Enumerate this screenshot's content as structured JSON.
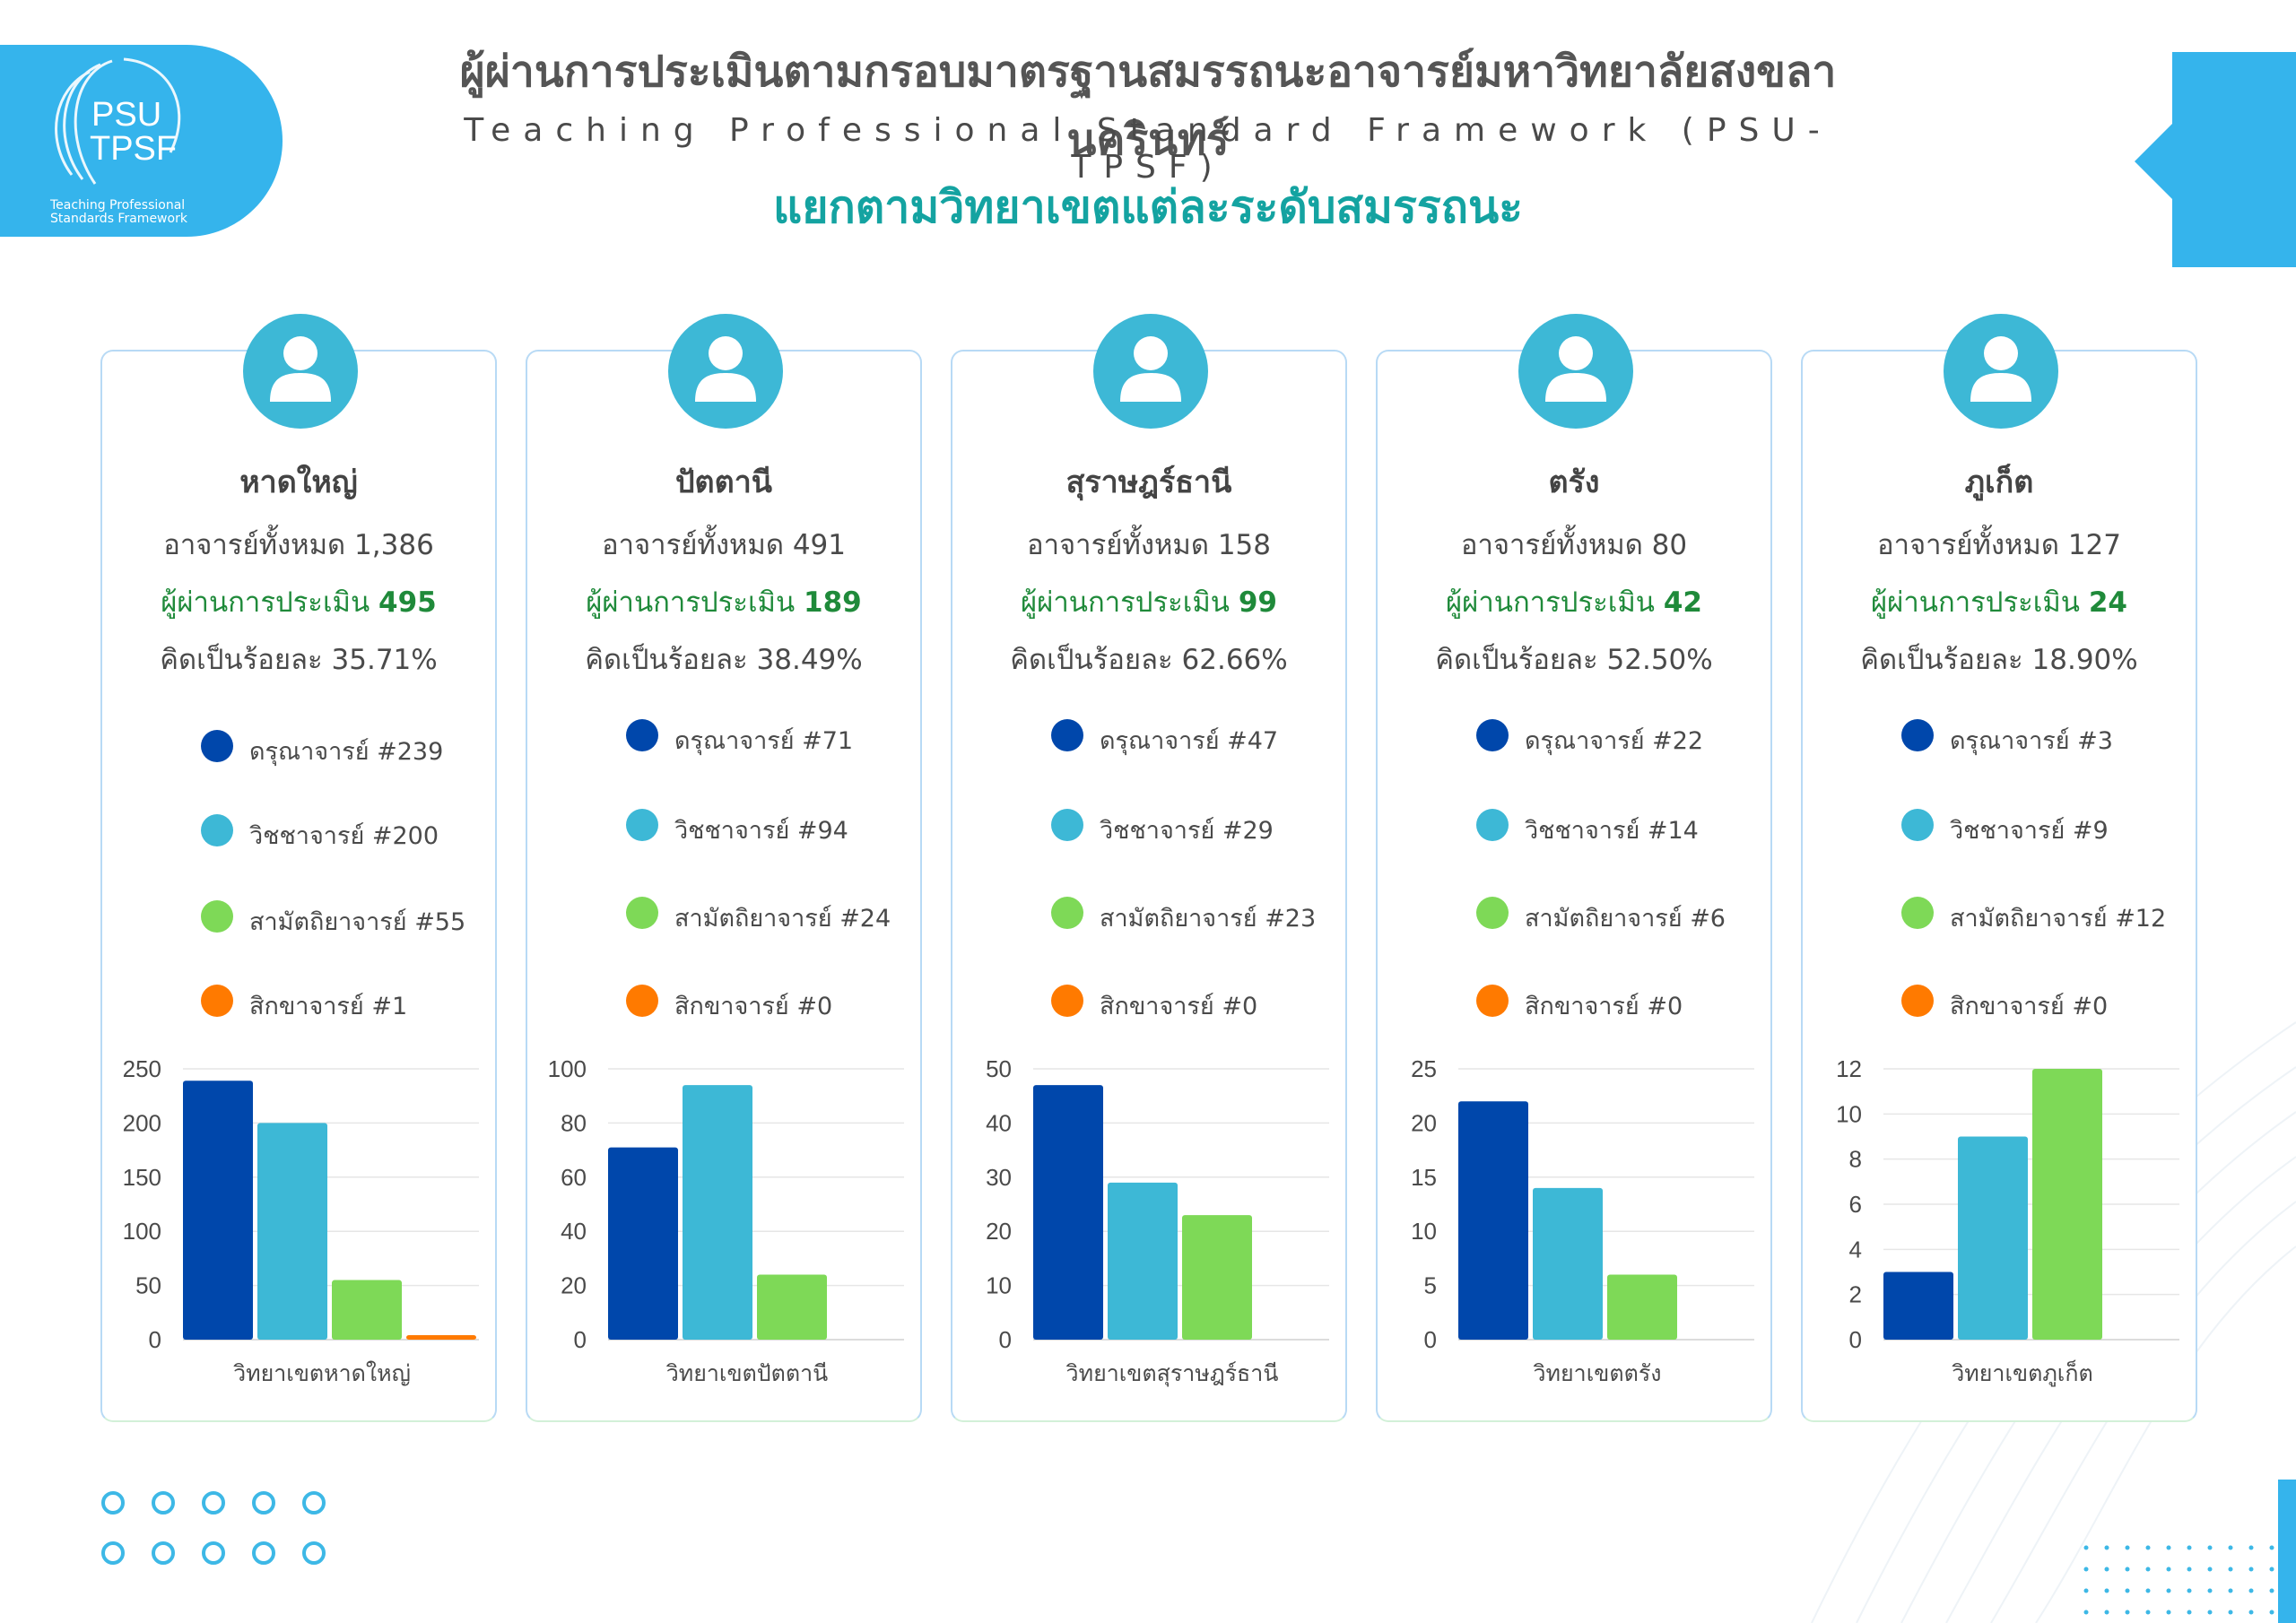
{
  "logo": {
    "line1": "PSU",
    "line2": "TPSF",
    "caption1": "Teaching Professional",
    "caption2": "Standards Framework"
  },
  "header": {
    "title_th": "ผู้ผ่านการประเมินตามกรอบมาตรฐานสมรรถนะอาจารย์มหาวิทยาลัยสงขลานครินทร์",
    "title_en": "Teaching Professional Standard Framework (PSU-TPSF)",
    "subtitle": "แยกตามวิทยาเขตแต่ละระดับสมรรถนะ"
  },
  "colors": {
    "accent_blue": "#35b4ec",
    "level1": "#0047ab",
    "level2": "#3db8d6",
    "level3": "#7ed957",
    "level4": "#ff7a00",
    "passed_green": "#1f8a3a",
    "subtitle_teal": "#14a3a1"
  },
  "campuses": [
    {
      "name": "หาดใหญ่",
      "total": "อาจารย์ทั้งหมด 1,386",
      "passed_label": "ผู้ผ่านการประเมิน",
      "passed_value": "495",
      "percent": "คิดเป็นร้อยละ 35.71%",
      "legend": [
        "ดรุณาจารย์ #239",
        "วิชชาจารย์ #200",
        "สามัตถิยาจารย์ #55",
        "สิกขาจารย์ #1"
      ]
    },
    {
      "name": "ปัตตานี",
      "total": "อาจารย์ทั้งหมด 491",
      "passed_label": "ผู้ผ่านการประเมิน",
      "passed_value": "189",
      "percent": "คิดเป็นร้อยละ 38.49%",
      "legend": [
        "ดรุณาจารย์ #71",
        "วิชชาจารย์ #94",
        "สามัตถิยาจารย์ #24",
        "สิกขาจารย์ #0"
      ]
    },
    {
      "name": "สุราษฎร์ธานี",
      "total": "อาจารย์ทั้งหมด 158",
      "passed_label": "ผู้ผ่านการประเมิน",
      "passed_value": "99",
      "percent": "คิดเป็นร้อยละ 62.66%",
      "legend": [
        "ดรุณาจารย์ #47",
        "วิชชาจารย์ #29",
        "สามัตถิยาจารย์ #23",
        "สิกขาจารย์ #0"
      ]
    },
    {
      "name": "ตรัง",
      "total": "อาจารย์ทั้งหมด 80",
      "passed_label": "ผู้ผ่านการประเมิน",
      "passed_value": "42",
      "percent": "คิดเป็นร้อยละ 52.50%",
      "legend": [
        "ดรุณาจารย์ #22",
        "วิชชาจารย์ #14",
        "สามัตถิยาจารย์ #6",
        "สิกขาจารย์ #0"
      ]
    },
    {
      "name": "ภูเก็ต",
      "total": "อาจารย์ทั้งหมด 127",
      "passed_label": "ผู้ผ่านการประเมิน",
      "passed_value": "24",
      "percent": "คิดเป็นร้อยละ 18.90%",
      "legend": [
        "ดรุณาจารย์ #3",
        "วิชชาจารย์ #9",
        "สามัตถิยาจารย์ #12",
        "สิกขาจารย์ #0"
      ]
    }
  ],
  "chart_data": [
    {
      "type": "bar",
      "campus": "หาดใหญ่",
      "xlabel": "วิทยาเขตหาดใหญ่",
      "values": [
        239,
        200,
        55,
        1
      ],
      "ylim": [
        0,
        250
      ],
      "yticks": [
        0,
        50,
        100,
        150,
        200,
        250
      ],
      "grid": true
    },
    {
      "type": "bar",
      "campus": "ปัตตานี",
      "xlabel": "วิทยาเขตปัตตานี",
      "values": [
        71,
        94,
        24,
        0
      ],
      "ylim": [
        0,
        100
      ],
      "yticks": [
        0,
        20,
        40,
        60,
        80,
        100
      ],
      "grid": true
    },
    {
      "type": "bar",
      "campus": "สุราษฎร์ธานี",
      "xlabel": "วิทยาเขตสุราษฎร์ธานี",
      "values": [
        47,
        29,
        23,
        0
      ],
      "ylim": [
        0,
        50
      ],
      "yticks": [
        0,
        10,
        20,
        30,
        40,
        50
      ],
      "grid": true
    },
    {
      "type": "bar",
      "campus": "ตรัง",
      "xlabel": "วิทยาเขตตรัง",
      "values": [
        22,
        14,
        6,
        0
      ],
      "ylim": [
        0,
        25
      ],
      "yticks": [
        0,
        5,
        10,
        15,
        20,
        25
      ],
      "grid": true
    },
    {
      "type": "bar",
      "campus": "ภูเก็ต",
      "xlabel": "วิทยาเขตภูเก็ต",
      "values": [
        3,
        9,
        12,
        0
      ],
      "ylim": [
        0,
        12
      ],
      "yticks": [
        0,
        2,
        4,
        6,
        8,
        10,
        12
      ],
      "grid": true
    }
  ]
}
